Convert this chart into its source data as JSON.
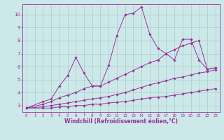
{
  "background_color": "#cce8e8",
  "line_color": "#993399",
  "grid_color": "#aacccc",
  "xlabel": "Windchill (Refroidissement éolien,°C)",
  "xlabel_color": "#993399",
  "tick_color": "#993399",
  "xlim": [
    -0.5,
    23.5
  ],
  "ylim": [
    2.5,
    10.8
  ],
  "yticks": [
    3,
    4,
    5,
    6,
    7,
    8,
    9,
    10
  ],
  "xticks": [
    0,
    1,
    2,
    3,
    4,
    5,
    6,
    7,
    8,
    9,
    10,
    11,
    12,
    13,
    14,
    15,
    16,
    17,
    18,
    19,
    20,
    21,
    22,
    23
  ],
  "lines": [
    {
      "x": [
        0,
        2,
        3,
        4,
        5,
        6,
        7,
        8,
        9,
        10,
        11,
        12,
        13,
        14,
        15,
        16,
        17,
        18,
        19,
        20,
        21,
        22,
        23
      ],
      "y": [
        2.8,
        3.3,
        3.5,
        4.5,
        5.3,
        6.7,
        5.5,
        4.5,
        4.5,
        6.1,
        8.4,
        10.0,
        10.1,
        10.6,
        8.5,
        7.4,
        7.0,
        6.5,
        8.1,
        8.1,
        6.5,
        5.8,
        5.9
      ]
    },
    {
      "x": [
        0,
        2,
        3,
        4,
        5,
        6,
        7,
        8,
        9,
        10,
        11,
        12,
        13,
        14,
        15,
        16,
        17,
        18,
        19,
        20,
        21,
        22,
        23
      ],
      "y": [
        2.8,
        3.1,
        3.3,
        3.6,
        3.8,
        4.0,
        4.3,
        4.5,
        4.5,
        4.8,
        5.1,
        5.4,
        5.7,
        6.0,
        6.3,
        6.5,
        7.0,
        7.3,
        7.6,
        7.8,
        8.0,
        5.8,
        5.9
      ]
    },
    {
      "x": [
        0,
        2,
        3,
        4,
        5,
        6,
        7,
        8,
        9,
        10,
        11,
        12,
        13,
        14,
        15,
        16,
        17,
        18,
        19,
        20,
        21,
        22,
        23
      ],
      "y": [
        2.8,
        2.9,
        3.0,
        3.1,
        3.2,
        3.3,
        3.4,
        3.5,
        3.6,
        3.7,
        3.85,
        4.0,
        4.2,
        4.4,
        4.6,
        4.75,
        4.9,
        5.1,
        5.2,
        5.35,
        5.5,
        5.6,
        5.75
      ]
    },
    {
      "x": [
        0,
        2,
        3,
        4,
        5,
        6,
        7,
        8,
        9,
        10,
        11,
        12,
        13,
        14,
        15,
        16,
        17,
        18,
        19,
        20,
        21,
        22,
        23
      ],
      "y": [
        2.8,
        2.8,
        2.8,
        2.9,
        2.9,
        3.0,
        3.0,
        3.1,
        3.1,
        3.2,
        3.25,
        3.3,
        3.4,
        3.5,
        3.6,
        3.65,
        3.7,
        3.8,
        3.9,
        4.0,
        4.1,
        4.2,
        4.3
      ]
    }
  ]
}
